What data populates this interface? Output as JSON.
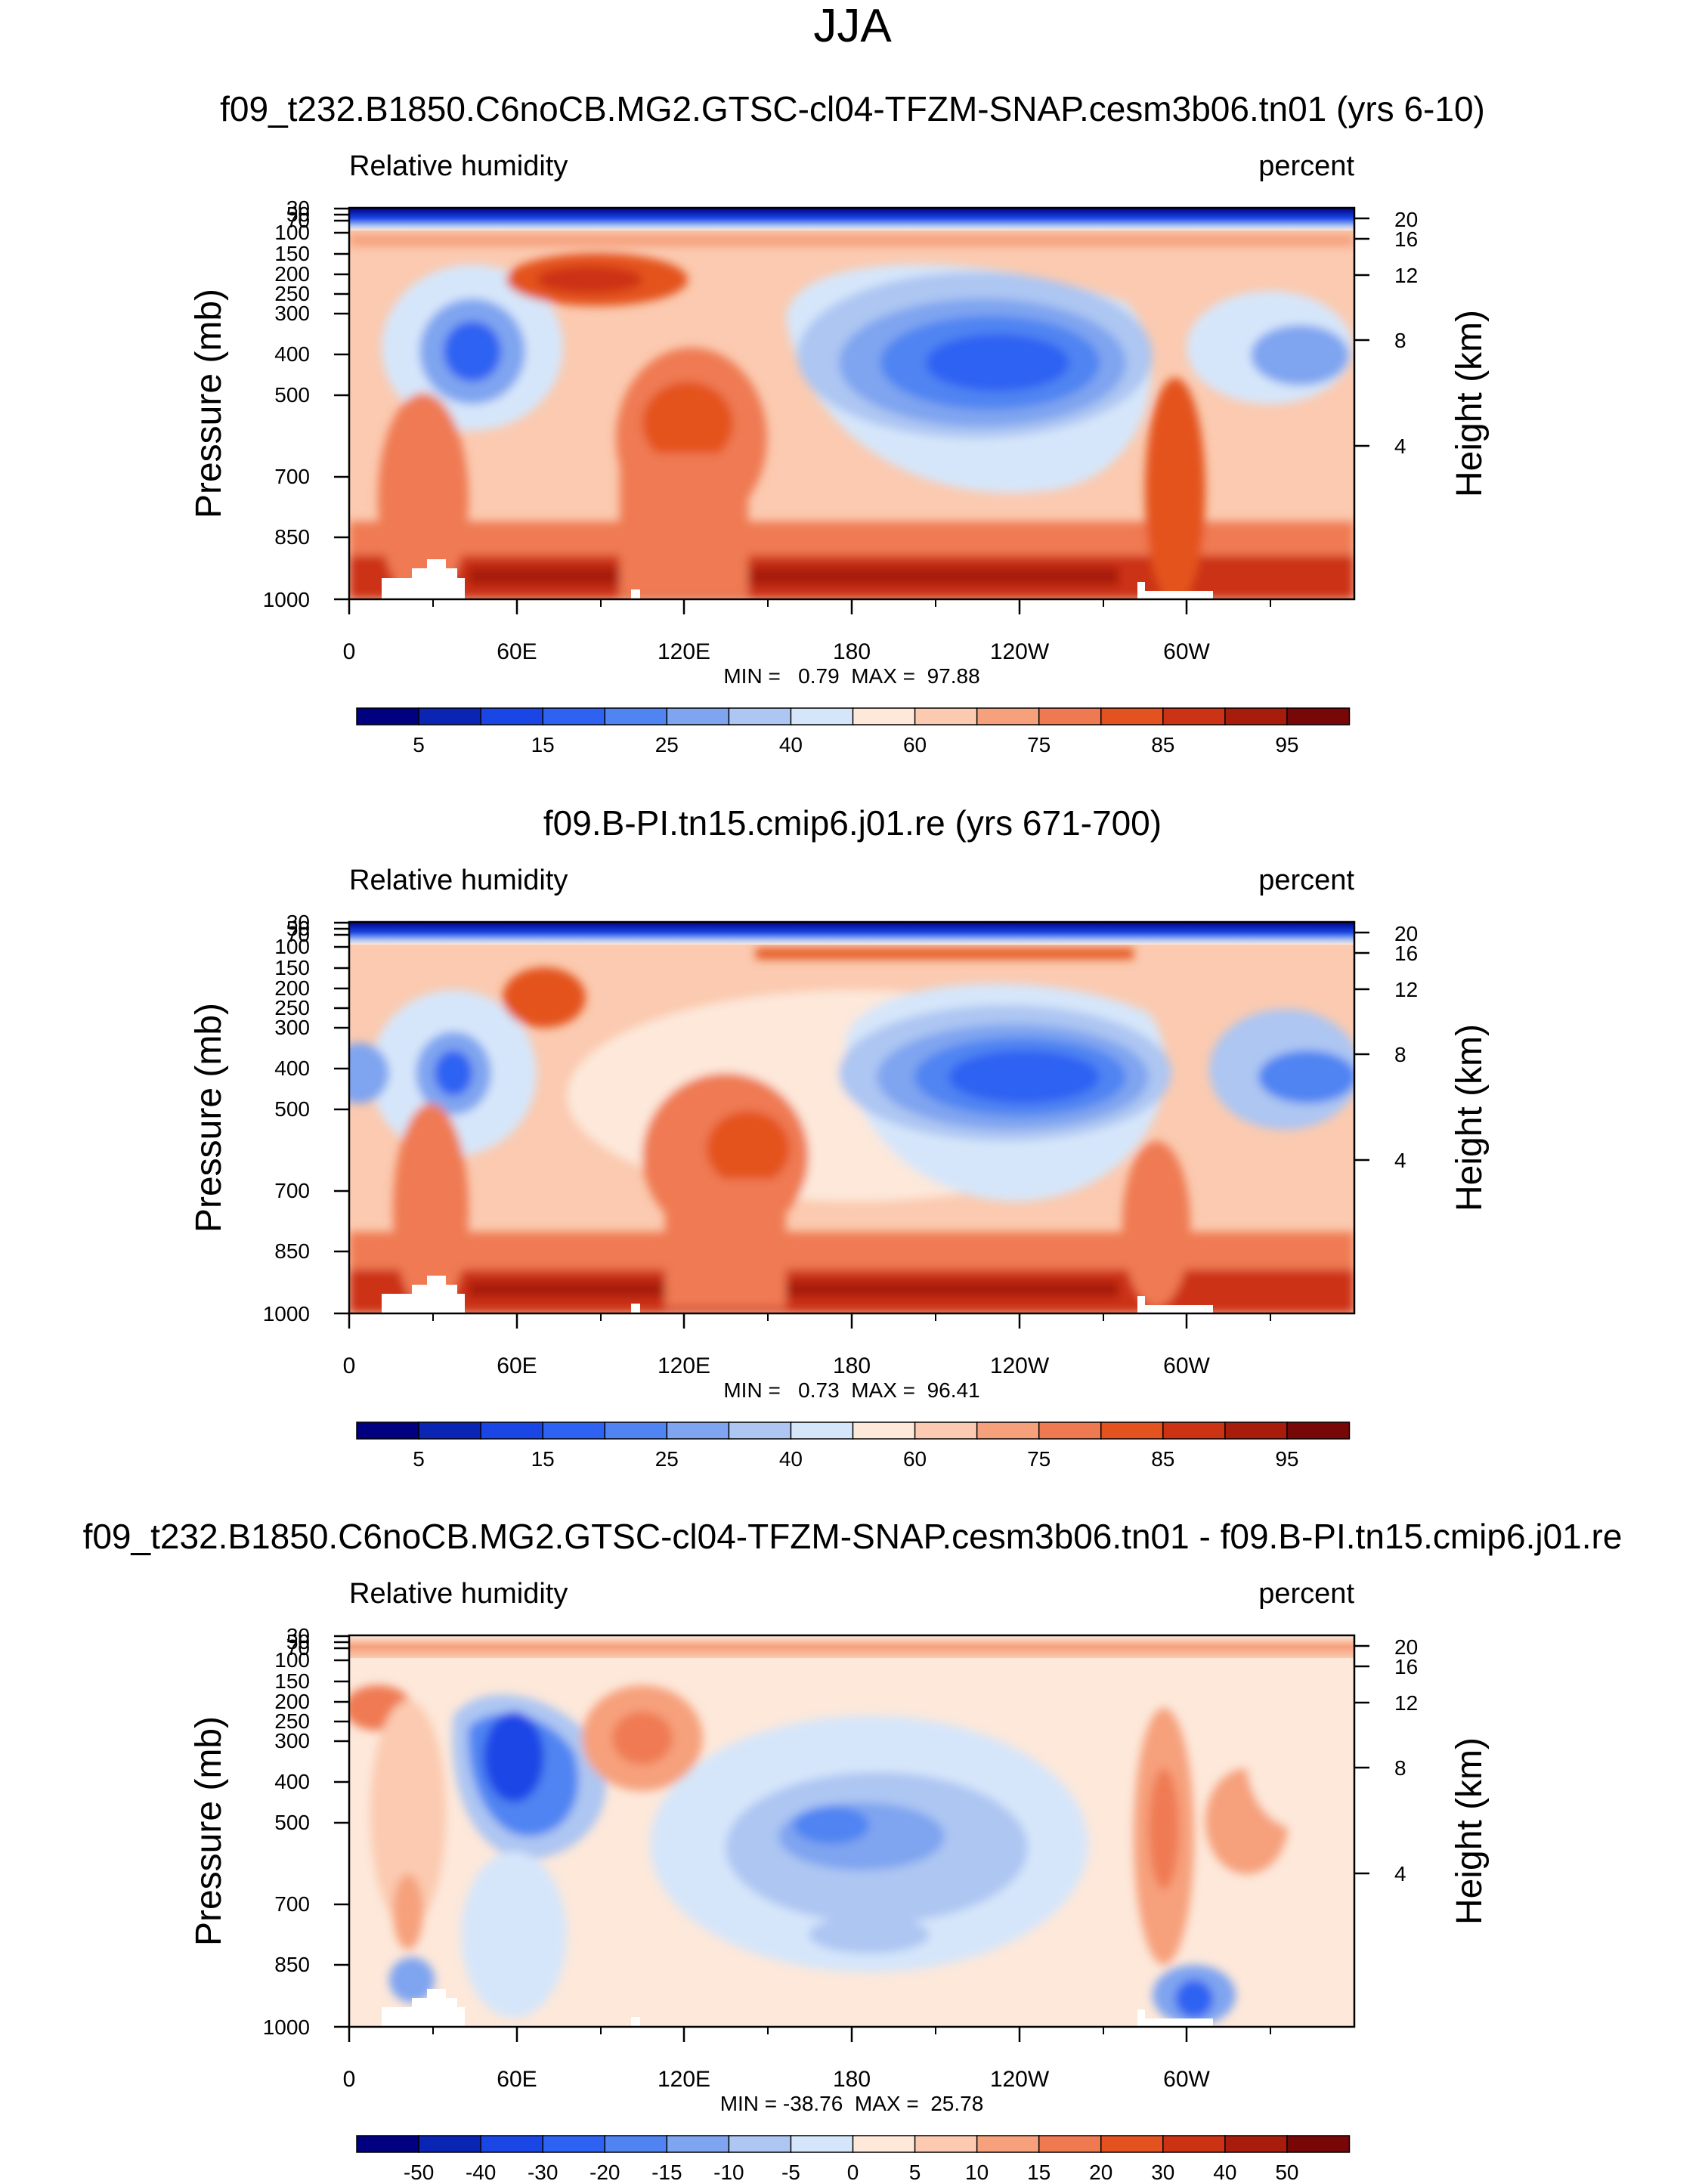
{
  "figure_title": "JJA",
  "colors": {
    "abs_scale": [
      "#000080",
      "#0a24b4",
      "#1a46e6",
      "#2e62f2",
      "#4f84f2",
      "#7fa4f0",
      "#adc6f2",
      "#d6e6fa",
      "#fde8da",
      "#fbcab0",
      "#f6a07c",
      "#ef7a52",
      "#e4521f",
      "#cc3214",
      "#a81c0c",
      "#780808"
    ],
    "diff_scale": [
      "#000080",
      "#0a24b4",
      "#1a46e6",
      "#2e62f2",
      "#4f84f2",
      "#7fa4f0",
      "#adc6f2",
      "#d6e6fa",
      "#fde8da",
      "#fbcab0",
      "#f6a07c",
      "#ef7a52",
      "#e4521f",
      "#cc3214",
      "#a81c0c",
      "#780808"
    ]
  },
  "chart_data": [
    {
      "type": "contour",
      "title": "f09_t232.B1850.C6noCB.MG2.GTSC-cl04-TFZM-SNAP.cesm3b06.tn01 (yrs 6-10)",
      "variable_label": "Relative humidity",
      "units_label": "percent",
      "ylabel": "Pressure (mb)",
      "ylabel_right": "Height (km)",
      "x_ticks": [
        "0",
        "60E",
        "120E",
        "180",
        "120W",
        "60W"
      ],
      "y_ticks": [
        "30",
        "50",
        "70",
        "100",
        "150",
        "200",
        "250",
        "300",
        "400",
        "500",
        "700",
        "850",
        "1000"
      ],
      "height_ticks": [
        "20",
        "16",
        "12",
        "8",
        "4"
      ],
      "stats_text": "MIN =   0.79  MAX =  97.88",
      "min": 0.79,
      "max": 97.88,
      "colorbar_labels": [
        "5",
        "15",
        "25",
        "40",
        "60",
        "75",
        "85",
        "95"
      ],
      "colorbar_levels": [
        5,
        10,
        15,
        20,
        25,
        30,
        40,
        50,
        60,
        65,
        75,
        80,
        85,
        90,
        95
      ]
    },
    {
      "type": "contour",
      "title": "f09.B-PI.tn15.cmip6.j01.re (yrs 671-700)",
      "variable_label": "Relative humidity",
      "units_label": "percent",
      "ylabel": "Pressure (mb)",
      "ylabel_right": "Height (km)",
      "x_ticks": [
        "0",
        "60E",
        "120E",
        "180",
        "120W",
        "60W"
      ],
      "y_ticks": [
        "30",
        "50",
        "70",
        "100",
        "150",
        "200",
        "250",
        "300",
        "400",
        "500",
        "700",
        "850",
        "1000"
      ],
      "height_ticks": [
        "20",
        "16",
        "12",
        "8",
        "4"
      ],
      "stats_text": "MIN =   0.73  MAX =  96.41",
      "min": 0.73,
      "max": 96.41,
      "colorbar_labels": [
        "5",
        "15",
        "25",
        "40",
        "60",
        "75",
        "85",
        "95"
      ],
      "colorbar_levels": [
        5,
        10,
        15,
        20,
        25,
        30,
        40,
        50,
        60,
        65,
        75,
        80,
        85,
        90,
        95
      ]
    },
    {
      "type": "contour",
      "title": "f09_t232.B1850.C6noCB.MG2.GTSC-cl04-TFZM-SNAP.cesm3b06.tn01 - f09.B-PI.tn15.cmip6.j01.re",
      "variable_label": "Relative humidity",
      "units_label": "percent",
      "ylabel": "Pressure (mb)",
      "ylabel_right": "Height (km)",
      "x_ticks": [
        "0",
        "60E",
        "120E",
        "180",
        "120W",
        "60W"
      ],
      "y_ticks": [
        "30",
        "50",
        "70",
        "100",
        "150",
        "200",
        "250",
        "300",
        "400",
        "500",
        "700",
        "850",
        "1000"
      ],
      "height_ticks": [
        "20",
        "16",
        "12",
        "8",
        "4"
      ],
      "stats_text": "MIN = -38.76  MAX =  25.78",
      "min": -38.76,
      "max": 25.78,
      "colorbar_labels": [
        "-50",
        "-40",
        "-30",
        "-20",
        "-15",
        "-10",
        "-5",
        "0",
        "5",
        "10",
        "15",
        "20",
        "30",
        "40",
        "50"
      ],
      "colorbar_levels": [
        -50,
        -40,
        -30,
        -20,
        -15,
        -10,
        -5,
        0,
        5,
        10,
        15,
        20,
        30,
        40,
        50
      ]
    }
  ]
}
